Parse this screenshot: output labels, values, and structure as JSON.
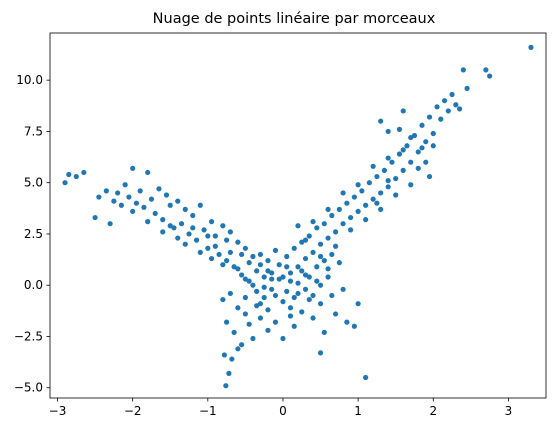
{
  "chart_data": {
    "type": "scatter",
    "title": "Nuage de points linéaire par morceaux",
    "xlabel": "",
    "ylabel": "",
    "xlim": [
      -3.1,
      3.5
    ],
    "ylim": [
      -5.5,
      12.3
    ],
    "xticks": [
      -3,
      -2,
      -1,
      0,
      1,
      2,
      3
    ],
    "xtick_labels": [
      "−3",
      "−2",
      "−1",
      "0",
      "1",
      "2",
      "3"
    ],
    "yticks": [
      -5.0,
      -2.5,
      0.0,
      2.5,
      5.0,
      7.5,
      10.0
    ],
    "ytick_labels": [
      "−5.0",
      "−2.5",
      "0.0",
      "2.5",
      "5.0",
      "7.5",
      "10.0"
    ],
    "grid": false,
    "marker_color": "#1f77b4",
    "points": [
      [
        -2.9,
        5.0
      ],
      [
        -2.85,
        5.4
      ],
      [
        -2.75,
        5.3
      ],
      [
        -2.65,
        5.5
      ],
      [
        -2.5,
        3.3
      ],
      [
        -2.45,
        4.3
      ],
      [
        -2.35,
        4.6
      ],
      [
        -2.25,
        4.1
      ],
      [
        -2.2,
        4.5
      ],
      [
        -2.15,
        3.9
      ],
      [
        -2.1,
        4.9
      ],
      [
        -2.05,
        4.3
      ],
      [
        -2.0,
        5.7
      ],
      [
        -1.95,
        4.0
      ],
      [
        -1.9,
        4.6
      ],
      [
        -1.85,
        3.8
      ],
      [
        -1.8,
        5.5
      ],
      [
        -1.75,
        4.2
      ],
      [
        -1.7,
        3.5
      ],
      [
        -1.65,
        4.7
      ],
      [
        -1.6,
        3.2
      ],
      [
        -1.55,
        4.4
      ],
      [
        -1.5,
        3.9
      ],
      [
        -1.45,
        2.8
      ],
      [
        -1.4,
        4.1
      ],
      [
        -1.35,
        3.0
      ],
      [
        -1.3,
        3.7
      ],
      [
        -1.25,
        2.5
      ],
      [
        -1.2,
        3.4
      ],
      [
        -1.15,
        2.2
      ],
      [
        -1.1,
        3.9
      ],
      [
        -1.05,
        2.7
      ],
      [
        -1.0,
        1.8
      ],
      [
        -0.95,
        3.1
      ],
      [
        -0.9,
        2.4
      ],
      [
        -0.85,
        1.5
      ],
      [
        -0.8,
        2.9
      ],
      [
        -0.75,
        1.2
      ],
      [
        -0.7,
        2.6
      ],
      [
        -0.65,
        0.9
      ],
      [
        -0.6,
        2.1
      ],
      [
        -0.55,
        0.5
      ],
      [
        -0.5,
        1.8
      ],
      [
        -0.45,
        0.2
      ],
      [
        -0.4,
        1.4
      ],
      [
        -0.35,
        -0.3
      ],
      [
        -0.3,
        1.0
      ],
      [
        -0.25,
        -0.6
      ],
      [
        -0.2,
        0.7
      ],
      [
        -0.15,
        -0.2
      ],
      [
        -2.3,
        3.0
      ],
      [
        -2.0,
        3.6
      ],
      [
        -1.8,
        3.1
      ],
      [
        -1.6,
        2.6
      ],
      [
        -1.5,
        2.9
      ],
      [
        -1.4,
        2.3
      ],
      [
        -1.3,
        2.0
      ],
      [
        -1.2,
        2.8
      ],
      [
        -1.1,
        1.6
      ],
      [
        -1.0,
        2.4
      ],
      [
        -0.95,
        1.3
      ],
      [
        -0.9,
        1.9
      ],
      [
        -0.8,
        1.0
      ],
      [
        -0.75,
        2.2
      ],
      [
        -0.7,
        1.6
      ],
      [
        -0.6,
        0.8
      ],
      [
        -0.55,
        1.5
      ],
      [
        -0.5,
        0.3
      ],
      [
        -0.45,
        1.1
      ],
      [
        -0.4,
        0.0
      ],
      [
        -0.35,
        0.7
      ],
      [
        -0.3,
        -0.9
      ],
      [
        -0.25,
        0.4
      ],
      [
        -0.2,
        -1.2
      ],
      [
        -0.15,
        0.6
      ],
      [
        -0.1,
        -0.5
      ],
      [
        -0.05,
        0.3
      ],
      [
        0.0,
        -0.8
      ],
      [
        0.05,
        0.9
      ],
      [
        0.1,
        -1.5
      ],
      [
        -0.8,
        -0.7
      ],
      [
        -0.75,
        -1.8
      ],
      [
        -0.7,
        -0.4
      ],
      [
        -0.65,
        -2.3
      ],
      [
        -0.6,
        -1.1
      ],
      [
        -0.55,
        -2.9
      ],
      [
        -0.5,
        -0.6
      ],
      [
        -0.45,
        -1.9
      ],
      [
        -0.4,
        -2.6
      ],
      [
        -0.35,
        -1.0
      ],
      [
        -0.78,
        -3.4
      ],
      [
        -0.76,
        -4.9
      ],
      [
        -0.72,
        -4.3
      ],
      [
        -0.68,
        -3.6
      ],
      [
        -0.6,
        -3.1
      ],
      [
        -0.5,
        -1.4
      ],
      [
        -0.3,
        -1.6
      ],
      [
        -0.2,
        -2.2
      ],
      [
        -0.1,
        -1.8
      ],
      [
        0.0,
        -2.6
      ],
      [
        0.1,
        -1.1
      ],
      [
        0.15,
        -2.0
      ],
      [
        0.2,
        -0.4
      ],
      [
        0.25,
        -1.3
      ],
      [
        0.3,
        0.5
      ],
      [
        0.35,
        -0.7
      ],
      [
        0.4,
        -1.6
      ],
      [
        0.45,
        0.2
      ],
      [
        0.5,
        -0.9
      ],
      [
        0.55,
        -2.3
      ],
      [
        0.6,
        0.8
      ],
      [
        0.65,
        -0.5
      ],
      [
        0.7,
        -1.4
      ],
      [
        0.75,
        1.1
      ],
      [
        0.8,
        -0.2
      ],
      [
        0.5,
        -3.3
      ],
      [
        0.95,
        -2.0
      ],
      [
        1.1,
        -4.5
      ],
      [
        0.85,
        -1.8
      ],
      [
        1.0,
        -0.9
      ],
      [
        0.05,
        1.4
      ],
      [
        0.1,
        0.6
      ],
      [
        0.15,
        1.8
      ],
      [
        0.2,
        0.9
      ],
      [
        0.25,
        2.1
      ],
      [
        0.3,
        1.3
      ],
      [
        0.35,
        2.4
      ],
      [
        0.4,
        1.6
      ],
      [
        0.45,
        2.8
      ],
      [
        0.5,
        2.0
      ],
      [
        0.55,
        3.0
      ],
      [
        0.6,
        2.3
      ],
      [
        0.65,
        3.4
      ],
      [
        0.7,
        2.6
      ],
      [
        0.75,
        3.7
      ],
      [
        0.8,
        3.0
      ],
      [
        0.85,
        4.0
      ],
      [
        0.9,
        3.3
      ],
      [
        0.95,
        4.3
      ],
      [
        1.0,
        3.6
      ],
      [
        1.05,
        4.6
      ],
      [
        1.1,
        3.9
      ],
      [
        1.15,
        5.0
      ],
      [
        1.2,
        4.2
      ],
      [
        1.25,
        5.3
      ],
      [
        1.3,
        4.5
      ],
      [
        1.35,
        5.6
      ],
      [
        1.4,
        4.8
      ],
      [
        1.45,
        6.0
      ],
      [
        1.5,
        5.2
      ],
      [
        1.55,
        6.4
      ],
      [
        1.6,
        5.6
      ],
      [
        1.65,
        6.8
      ],
      [
        1.7,
        6.0
      ],
      [
        1.75,
        7.3
      ],
      [
        1.8,
        6.5
      ],
      [
        1.85,
        7.8
      ],
      [
        1.9,
        7.0
      ],
      [
        1.95,
        8.2
      ],
      [
        2.0,
        7.4
      ],
      [
        2.05,
        8.7
      ],
      [
        2.1,
        8.1
      ],
      [
        2.15,
        9.0
      ],
      [
        2.2,
        8.5
      ],
      [
        2.25,
        9.3
      ],
      [
        2.3,
        8.8
      ],
      [
        2.35,
        8.6
      ],
      [
        2.4,
        10.5
      ],
      [
        2.45,
        9.6
      ],
      [
        2.7,
        10.5
      ],
      [
        2.75,
        10.2
      ],
      [
        3.3,
        11.6
      ],
      [
        1.3,
        8.0
      ],
      [
        1.4,
        7.5
      ],
      [
        1.55,
        7.6
      ],
      [
        1.6,
        8.5
      ],
      [
        1.7,
        7.2
      ],
      [
        1.95,
        5.3
      ],
      [
        2.0,
        6.8
      ],
      [
        1.9,
        6.0
      ],
      [
        0.2,
        2.9
      ],
      [
        0.3,
        2.2
      ],
      [
        0.4,
        3.1
      ],
      [
        0.5,
        1.4
      ],
      [
        0.6,
        3.7
      ],
      [
        0.7,
        1.9
      ],
      [
        0.8,
        4.5
      ],
      [
        0.9,
        2.7
      ],
      [
        1.0,
        4.9
      ],
      [
        1.1,
        3.2
      ],
      [
        1.2,
        5.8
      ],
      [
        1.3,
        3.7
      ],
      [
        1.4,
        6.2
      ],
      [
        1.5,
        4.4
      ],
      [
        1.6,
        6.6
      ],
      [
        1.7,
        4.9
      ],
      [
        1.8,
        5.7
      ],
      [
        1.85,
        6.7
      ],
      [
        1.4,
        5.1
      ],
      [
        1.25,
        4.0
      ],
      [
        -0.05,
        1.0
      ],
      [
        -0.1,
        1.7
      ],
      [
        -0.15,
        0.3
      ],
      [
        -0.2,
        1.2
      ],
      [
        -0.25,
        -0.1
      ],
      [
        -0.3,
        1.5
      ],
      [
        0.0,
        0.4
      ],
      [
        0.05,
        -0.3
      ],
      [
        0.1,
        0.2
      ],
      [
        0.15,
        -0.6
      ],
      [
        0.2,
        0.1
      ],
      [
        0.25,
        0.7
      ],
      [
        0.3,
        -0.2
      ],
      [
        0.35,
        0.4
      ],
      [
        0.4,
        -0.5
      ],
      [
        0.45,
        0.9
      ],
      [
        0.5,
        0.0
      ],
      [
        0.55,
        1.2
      ],
      [
        0.6,
        0.4
      ],
      [
        0.65,
        1.5
      ]
    ]
  }
}
